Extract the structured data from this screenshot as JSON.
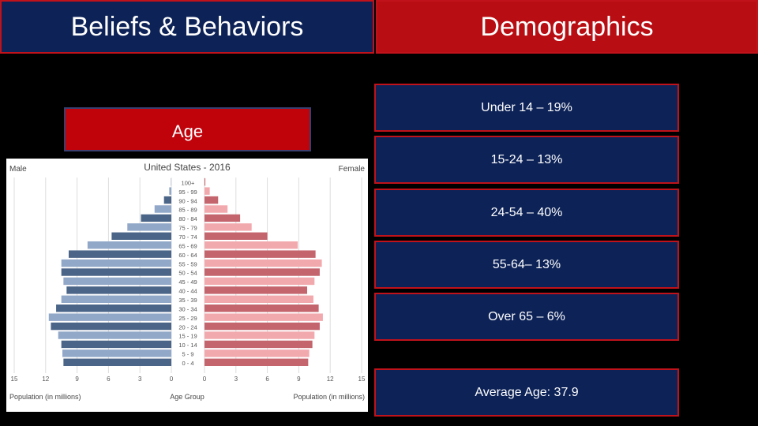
{
  "tabs": {
    "beliefs_label": "Beliefs & Behaviors",
    "demographics_label": "Demographics"
  },
  "age_box": {
    "label": "Age"
  },
  "stats": [
    "Under 14 – 19%",
    "15-24 – 13%",
    "24-54 – 40%",
    "55-64– 13%",
    "Over 65 – 6%",
    "Average Age: 37.9"
  ],
  "colors": {
    "male_dark": "#4a6587",
    "male_light": "#91a8c8",
    "female_dark": "#c4646c",
    "female_light": "#f2a9ae",
    "tab_blue": "#0d2257",
    "tab_red": "#b80d12"
  },
  "chart_data": {
    "type": "bar",
    "title": "United States - 2016",
    "left_label": "Male",
    "right_label": "Female",
    "xlabel_left": "Population (in millions)",
    "xlabel_center": "Age Group",
    "xlabel_right": "Population (in millions)",
    "categories": [
      "0 - 4",
      "5 - 9",
      "10 - 14",
      "15 - 19",
      "20 - 24",
      "25 - 29",
      "30 - 34",
      "35 - 39",
      "40 - 44",
      "45 - 49",
      "50 - 54",
      "55 - 59",
      "60 - 64",
      "65 - 69",
      "70 - 74",
      "75 - 79",
      "80 - 84",
      "85 - 89",
      "90 - 94",
      "95 - 99",
      "100+"
    ],
    "series": [
      {
        "name": "Male",
        "values": [
          10.3,
          10.4,
          10.5,
          10.8,
          11.5,
          11.7,
          11.0,
          10.5,
          10.0,
          10.3,
          10.5,
          10.5,
          9.8,
          8.0,
          5.7,
          4.2,
          2.9,
          1.6,
          0.7,
          0.2,
          0.02
        ]
      },
      {
        "name": "Female",
        "values": [
          9.9,
          10.0,
          10.3,
          10.5,
          11.0,
          11.3,
          10.9,
          10.4,
          9.8,
          10.5,
          11.0,
          11.2,
          10.6,
          8.9,
          6.0,
          4.5,
          3.4,
          2.2,
          1.3,
          0.5,
          0.08
        ]
      }
    ],
    "xticks": [
      "15",
      "12",
      "9",
      "6",
      "3",
      "0",
      "0",
      "3",
      "6",
      "9",
      "12",
      "15"
    ],
    "xlim": [
      0,
      15
    ],
    "grid": true
  }
}
